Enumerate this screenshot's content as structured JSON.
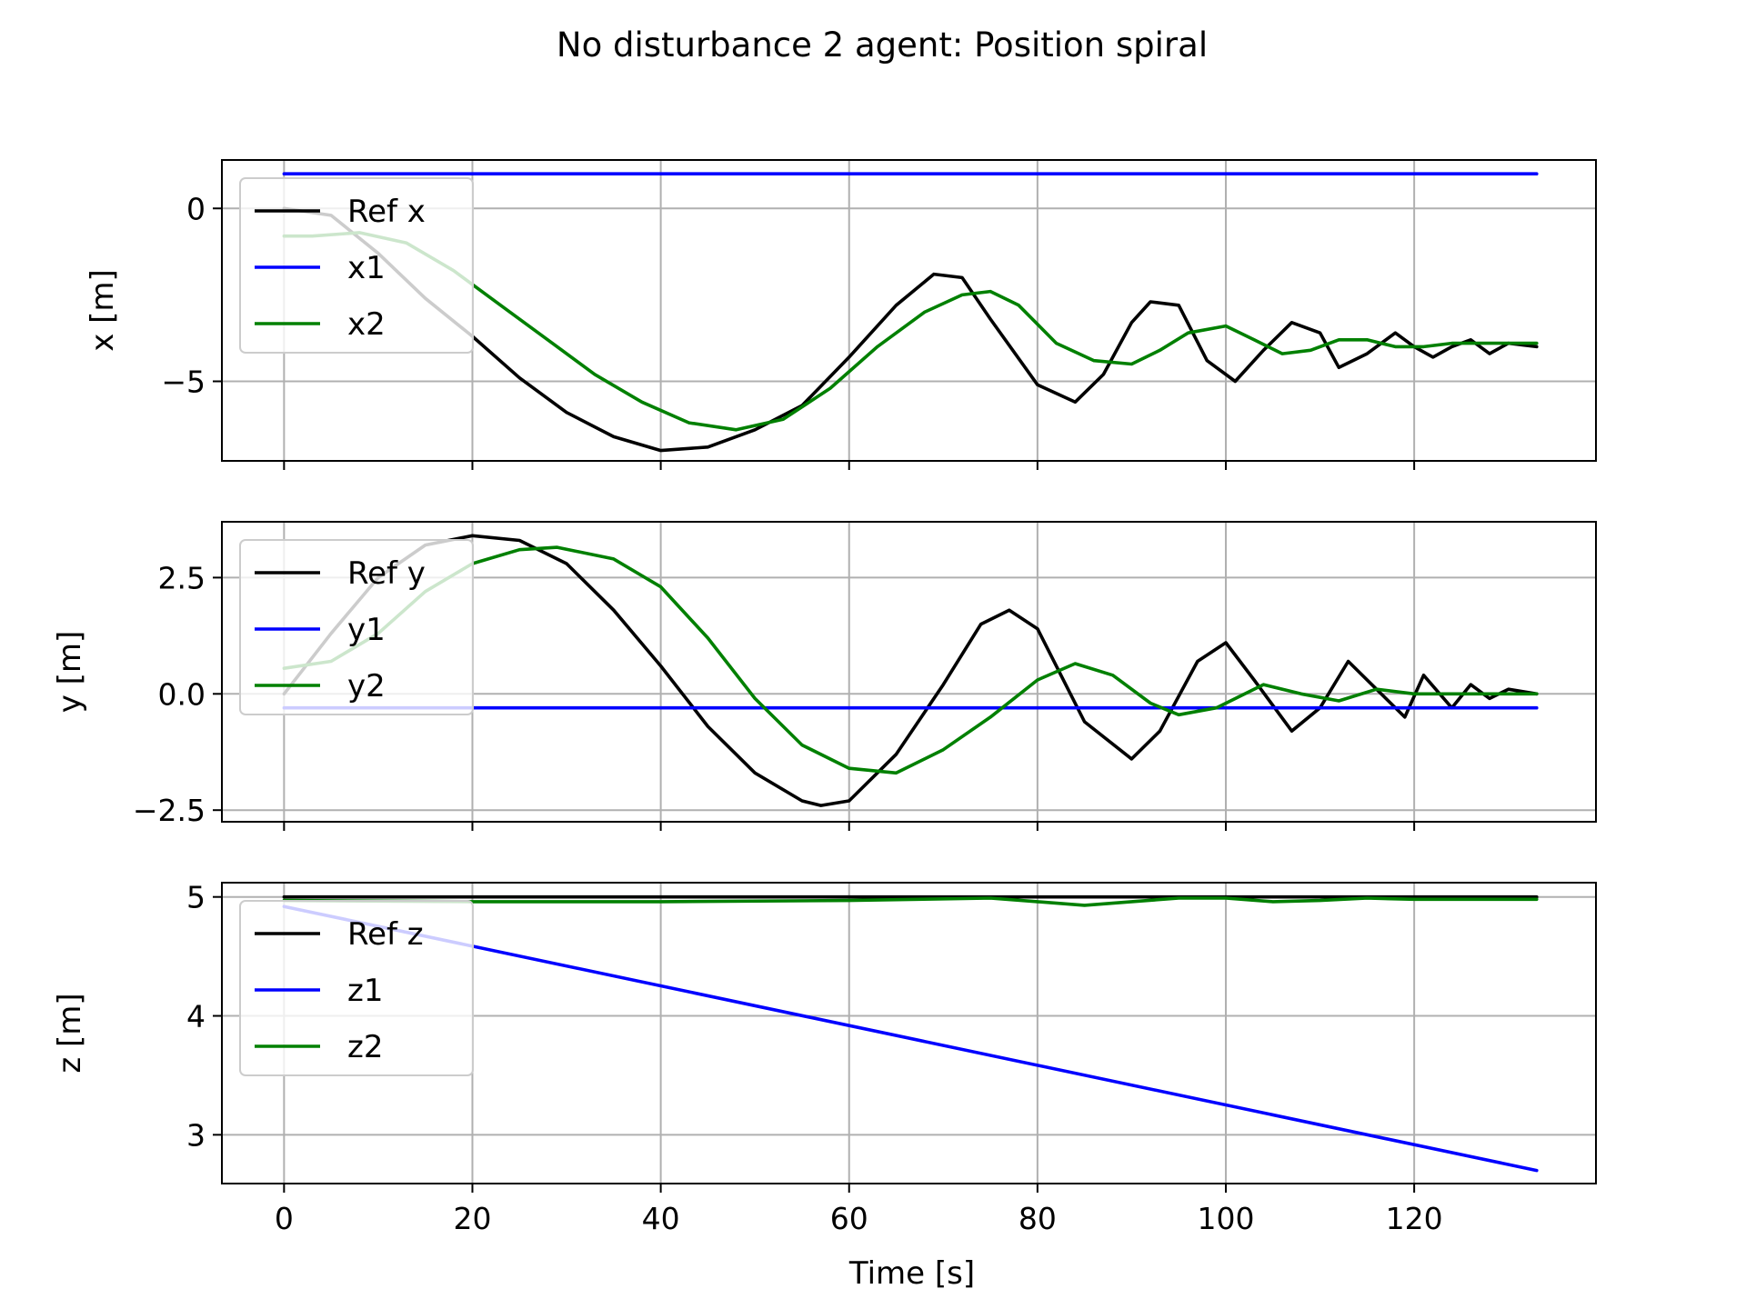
{
  "figure": {
    "title": "No disturbance 2 agent: Position spiral",
    "xlabel": "Time [s]",
    "x_ticks": [
      0,
      20,
      40,
      60,
      80,
      100,
      120
    ],
    "xlim": [
      -6.6,
      139.3
    ]
  },
  "colors": {
    "ref": "#000000",
    "agent1": "#0000ff",
    "agent2": "#008000",
    "grid": "#b0b0b0"
  },
  "chart_data": [
    {
      "type": "line",
      "ylabel": "x [m]",
      "ylim": [
        -7.3,
        1.4
      ],
      "y_ticks": [
        0,
        -5
      ],
      "y_tick_labels": [
        "0",
        "−5"
      ],
      "grid": true,
      "legend": "upper left",
      "series": [
        {
          "name": "Ref x",
          "color": "#000000",
          "x": [
            0,
            5,
            10,
            15,
            20,
            25,
            30,
            35,
            40,
            45,
            50,
            55,
            60,
            65,
            69,
            72,
            75,
            80,
            84,
            87,
            90,
            92,
            95,
            98,
            101,
            104,
            107,
            110,
            112,
            115,
            118,
            120,
            122,
            124,
            126,
            128,
            130,
            133
          ],
          "values": [
            0,
            -0.2,
            -1.3,
            -2.6,
            -3.7,
            -4.9,
            -5.9,
            -6.6,
            -7.0,
            -6.9,
            -6.4,
            -5.7,
            -4.3,
            -2.8,
            -1.9,
            -2.0,
            -3.2,
            -5.1,
            -5.6,
            -4.8,
            -3.3,
            -2.7,
            -2.8,
            -4.4,
            -5.0,
            -4.1,
            -3.3,
            -3.6,
            -4.6,
            -4.2,
            -3.6,
            -4.0,
            -4.3,
            -4.0,
            -3.8,
            -4.2,
            -3.9,
            -4.0
          ]
        },
        {
          "name": "x1",
          "color": "#0000ff",
          "x": [
            0,
            133
          ],
          "values": [
            1.0,
            1.0
          ]
        },
        {
          "name": "x2",
          "color": "#008000",
          "x": [
            0,
            3,
            8,
            13,
            18,
            23,
            28,
            33,
            38,
            43,
            48,
            53,
            58,
            63,
            68,
            72,
            75,
            78,
            82,
            86,
            90,
            93,
            96,
            100,
            103,
            106,
            109,
            112,
            115,
            118,
            121,
            124,
            127,
            130,
            133
          ],
          "values": [
            -0.8,
            -0.8,
            -0.7,
            -1.0,
            -1.8,
            -2.8,
            -3.8,
            -4.8,
            -5.6,
            -6.2,
            -6.4,
            -6.1,
            -5.2,
            -4.0,
            -3.0,
            -2.5,
            -2.4,
            -2.8,
            -3.9,
            -4.4,
            -4.5,
            -4.1,
            -3.6,
            -3.4,
            -3.8,
            -4.2,
            -4.1,
            -3.8,
            -3.8,
            -4.0,
            -4.0,
            -3.9,
            -3.9,
            -3.9,
            -3.9
          ]
        }
      ]
    },
    {
      "type": "line",
      "ylabel": "y [m]",
      "ylim": [
        -2.75,
        3.7
      ],
      "y_ticks": [
        2.5,
        0,
        -2.5
      ],
      "y_tick_labels": [
        "2.5",
        "0.0",
        "−2.5"
      ],
      "grid": true,
      "legend": "upper left",
      "series": [
        {
          "name": "Ref y",
          "color": "#000000",
          "x": [
            0,
            5,
            10,
            15,
            20,
            25,
            30,
            35,
            40,
            45,
            50,
            55,
            57,
            60,
            65,
            70,
            74,
            77,
            80,
            85,
            90,
            93,
            97,
            100,
            103,
            107,
            110,
            113,
            116,
            119,
            121,
            124,
            126,
            128,
            130,
            133
          ],
          "values": [
            0,
            1.3,
            2.5,
            3.2,
            3.4,
            3.3,
            2.8,
            1.8,
            0.6,
            -0.7,
            -1.7,
            -2.3,
            -2.4,
            -2.3,
            -1.3,
            0.2,
            1.5,
            1.8,
            1.4,
            -0.6,
            -1.4,
            -0.8,
            0.7,
            1.1,
            0.3,
            -0.8,
            -0.3,
            0.7,
            0.1,
            -0.5,
            0.4,
            -0.3,
            0.2,
            -0.1,
            0.1,
            0.0
          ]
        },
        {
          "name": "y1",
          "color": "#0000ff",
          "x": [
            0,
            133
          ],
          "values": [
            -0.3,
            -0.3
          ]
        },
        {
          "name": "y2",
          "color": "#008000",
          "x": [
            0,
            5,
            10,
            15,
            20,
            25,
            29,
            35,
            40,
            45,
            50,
            55,
            60,
            65,
            70,
            75,
            80,
            84,
            88,
            92,
            95,
            99,
            104,
            108,
            112,
            116,
            120,
            124,
            128,
            133
          ],
          "values": [
            0.55,
            0.7,
            1.3,
            2.2,
            2.8,
            3.1,
            3.15,
            2.9,
            2.3,
            1.2,
            -0.1,
            -1.1,
            -1.6,
            -1.7,
            -1.2,
            -0.5,
            0.3,
            0.65,
            0.4,
            -0.2,
            -0.45,
            -0.3,
            0.2,
            0.0,
            -0.15,
            0.1,
            0.0,
            0.0,
            0.0,
            0.0
          ]
        }
      ]
    },
    {
      "type": "line",
      "ylabel": "z [m]",
      "ylim": [
        2.59,
        5.12
      ],
      "y_ticks": [
        5,
        4,
        3
      ],
      "y_tick_labels": [
        "5",
        "4",
        "3"
      ],
      "grid": true,
      "legend": "upper left",
      "series": [
        {
          "name": "Ref z",
          "color": "#000000",
          "x": [
            0,
            133
          ],
          "values": [
            5.0,
            5.0
          ]
        },
        {
          "name": "z1",
          "color": "#0000ff",
          "x": [
            0,
            133
          ],
          "values": [
            4.92,
            2.7
          ]
        },
        {
          "name": "z2",
          "color": "#008000",
          "x": [
            0,
            20,
            40,
            60,
            75,
            80,
            85,
            90,
            95,
            100,
            105,
            110,
            115,
            120,
            125,
            133
          ],
          "values": [
            4.97,
            4.96,
            4.96,
            4.97,
            4.99,
            4.96,
            4.93,
            4.96,
            4.99,
            4.99,
            4.96,
            4.97,
            4.99,
            4.98,
            4.98,
            4.98
          ]
        }
      ]
    }
  ]
}
